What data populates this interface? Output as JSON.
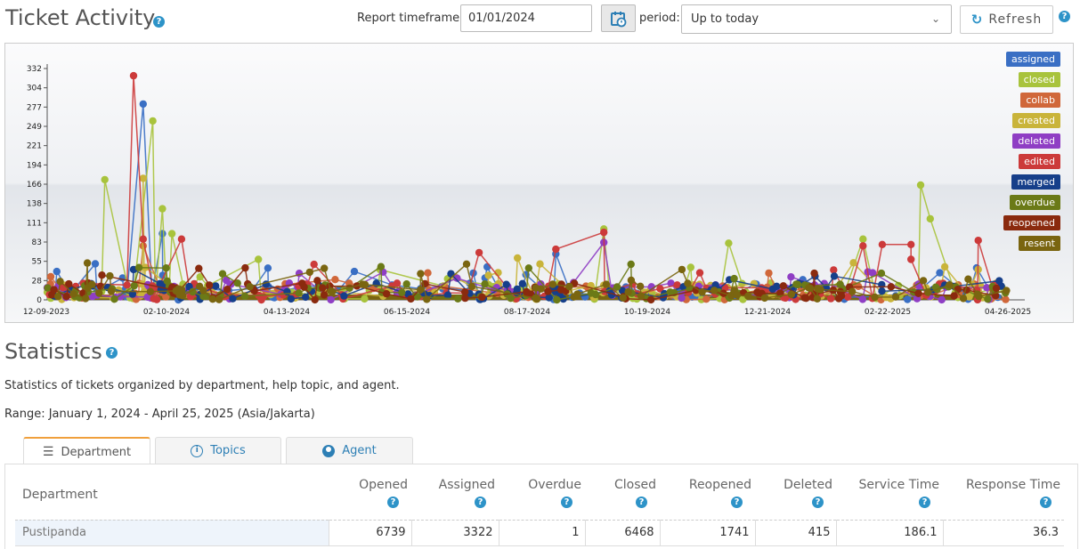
{
  "header": {
    "title": "Ticket Activity",
    "timeframe_label": "Report timeframe:",
    "timeframe_value": "01/01/2024",
    "period_label": "period:",
    "period_value": "Up to today",
    "refresh_label": "Refresh"
  },
  "chart_data": {
    "type": "line",
    "y_ticks": [
      "332",
      "304",
      "277",
      "249",
      "221",
      "194",
      "166",
      "138",
      "111",
      "83",
      "55",
      "28",
      "0"
    ],
    "x_ticks": [
      "12-09-2023",
      "02-10-2024",
      "04-13-2024",
      "06-15-2024",
      "08-17-2024",
      "10-19-2024",
      "12-21-2024",
      "02-22-2025",
      "04-26-2025"
    ],
    "ylim": [
      0,
      345
    ],
    "legend": [
      {
        "name": "assigned",
        "color": "#3a6fc4"
      },
      {
        "name": "closed",
        "color": "#a8c33c"
      },
      {
        "name": "collab",
        "color": "#d0673a"
      },
      {
        "name": "created",
        "color": "#c9b43a"
      },
      {
        "name": "deleted",
        "color": "#8f3ec4"
      },
      {
        "name": "edited",
        "color": "#cc3a3a"
      },
      {
        "name": "merged",
        "color": "#163f8a"
      },
      {
        "name": "overdue",
        "color": "#6b7a17"
      },
      {
        "name": "reopened",
        "color": "#8a2a0e"
      },
      {
        "name": "resent",
        "color": "#7a6510"
      }
    ],
    "series": [
      {
        "name": "assigned",
        "points": [
          [
            0.01,
            42
          ],
          [
            0.1,
            290
          ],
          [
            0.12,
            98
          ],
          [
            0.23,
            47
          ],
          [
            0.32,
            42
          ],
          [
            0.53,
            68
          ],
          [
            0.93,
            40
          ]
        ]
      },
      {
        "name": "closed",
        "points": [
          [
            0.06,
            178
          ],
          [
            0.11,
            265
          ],
          [
            0.12,
            135
          ],
          [
            0.13,
            98
          ],
          [
            0.22,
            60
          ],
          [
            0.58,
            105
          ],
          [
            0.71,
            84
          ],
          [
            0.85,
            90
          ],
          [
            0.91,
            170
          ],
          [
            0.92,
            120
          ]
        ]
      },
      {
        "name": "collab",
        "points": [
          [
            0.1,
            80
          ],
          [
            0.3,
            30
          ]
        ]
      },
      {
        "name": "created",
        "points": [
          [
            0.1,
            180
          ],
          [
            0.49,
            62
          ],
          [
            0.84,
            55
          ],
          [
            0.97,
            45
          ]
        ]
      },
      {
        "name": "deleted",
        "points": [
          [
            0.0,
            18
          ],
          [
            0.58,
            85
          ],
          [
            0.86,
            40
          ]
        ]
      },
      {
        "name": "edited",
        "points": [
          [
            0.09,
            332
          ],
          [
            0.1,
            90
          ],
          [
            0.14,
            90
          ],
          [
            0.45,
            70
          ],
          [
            0.53,
            75
          ],
          [
            0.58,
            100
          ],
          [
            0.68,
            40
          ],
          [
            0.85,
            80
          ],
          [
            0.87,
            82
          ],
          [
            0.9,
            82
          ],
          [
            0.9,
            60
          ],
          [
            0.97,
            88
          ]
        ]
      },
      {
        "name": "merged",
        "points": [
          [
            0.09,
            45
          ],
          [
            0.25,
            12
          ],
          [
            0.76,
            20
          ],
          [
            0.8,
            35
          ],
          [
            0.82,
            35
          ]
        ]
      },
      {
        "name": "overdue",
        "points": [
          [
            0.07,
            1
          ],
          [
            0.98,
            1
          ]
        ]
      },
      {
        "name": "reopened",
        "points": [
          [
            0.02,
            5
          ],
          [
            0.5,
            10
          ],
          [
            0.8,
            8
          ]
        ]
      },
      {
        "name": "resent",
        "points": [
          [
            0.04,
            2
          ],
          [
            0.6,
            3
          ]
        ]
      }
    ]
  },
  "statistics": {
    "title": "Statistics",
    "description": "Statistics of tickets organized by department, help topic, and agent.",
    "range": "Range: January 1, 2024 - April 25, 2025 (Asia/Jakarta)",
    "tabs": [
      {
        "label": "Department"
      },
      {
        "label": "Topics"
      },
      {
        "label": "Agent"
      }
    ],
    "table": {
      "headers": [
        "Department",
        "Opened",
        "Assigned",
        "Overdue",
        "Closed",
        "Reopened",
        "Deleted",
        "Service Time",
        "Response Time"
      ],
      "rows": [
        [
          "Pustipanda",
          "6739",
          "3322",
          "1",
          "6468",
          "1741",
          "415",
          "186.1",
          "36.3"
        ]
      ]
    }
  }
}
